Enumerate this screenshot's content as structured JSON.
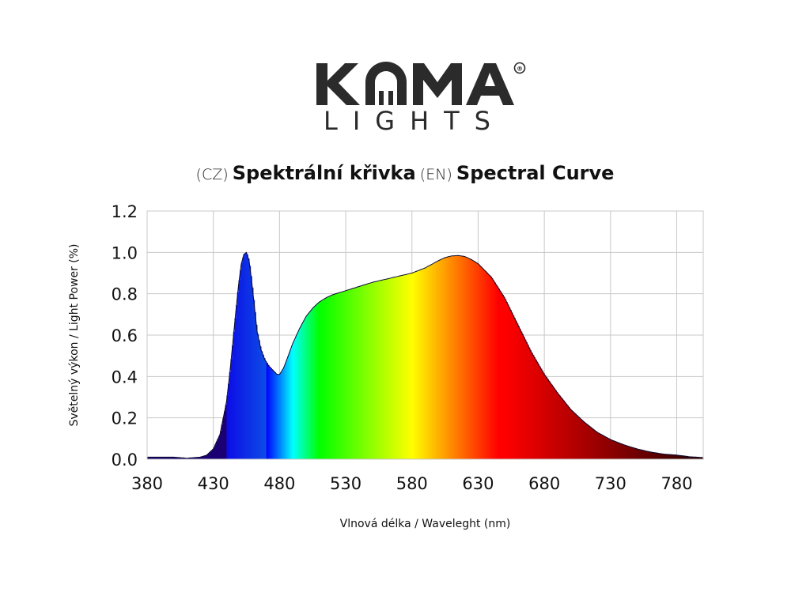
{
  "brand": {
    "name": "KOMA",
    "sub": "LIGHTS",
    "registered": "®",
    "color": "#2b2b2b"
  },
  "title": {
    "cz_tag": "(CZ)",
    "cz_text": "Spektrální křivka",
    "en_tag": "(EN)",
    "en_text": "Spectral Curve"
  },
  "chart_data": {
    "type": "area",
    "title": "(CZ) Spektrální křivka (EN) Spectral Curve",
    "xlabel": "Vlnová délka / Waveleght (nm)",
    "ylabel": "Světelný výkon / Light Power (%)",
    "xlim": [
      380,
      800
    ],
    "ylim": [
      0,
      1.2
    ],
    "x_ticks": [
      380,
      430,
      480,
      530,
      580,
      630,
      680,
      730,
      780
    ],
    "y_ticks": [
      "0.0",
      "0.2",
      "0.4",
      "0.6",
      "0.8",
      "1.0",
      "1.2"
    ],
    "grid": true,
    "fill": "wavelength-rainbow",
    "series": [
      {
        "x": [
          380,
          400,
          410,
          420,
          425,
          430,
          435,
          440,
          443,
          446,
          449,
          451,
          453,
          455,
          457,
          459,
          461,
          463,
          466,
          469,
          472,
          475,
          478,
          480,
          483,
          486,
          490,
          495,
          500,
          505,
          510,
          515,
          520,
          525,
          530,
          540,
          550,
          560,
          570,
          580,
          590,
          600,
          605,
          610,
          615,
          620,
          625,
          630,
          640,
          650,
          660,
          670,
          680,
          690,
          700,
          710,
          720,
          730,
          740,
          750,
          760,
          770,
          780,
          790,
          800
        ],
        "y": [
          0.01,
          0.01,
          0.005,
          0.01,
          0.02,
          0.05,
          0.12,
          0.28,
          0.45,
          0.65,
          0.84,
          0.94,
          0.99,
          1.0,
          0.96,
          0.86,
          0.74,
          0.62,
          0.53,
          0.48,
          0.45,
          0.43,
          0.41,
          0.41,
          0.44,
          0.49,
          0.56,
          0.63,
          0.69,
          0.73,
          0.76,
          0.78,
          0.795,
          0.805,
          0.815,
          0.835,
          0.855,
          0.87,
          0.885,
          0.9,
          0.925,
          0.96,
          0.975,
          0.983,
          0.985,
          0.98,
          0.965,
          0.945,
          0.88,
          0.78,
          0.65,
          0.52,
          0.41,
          0.32,
          0.24,
          0.18,
          0.13,
          0.095,
          0.07,
          0.05,
          0.035,
          0.025,
          0.02,
          0.012,
          0.008
        ]
      }
    ]
  }
}
